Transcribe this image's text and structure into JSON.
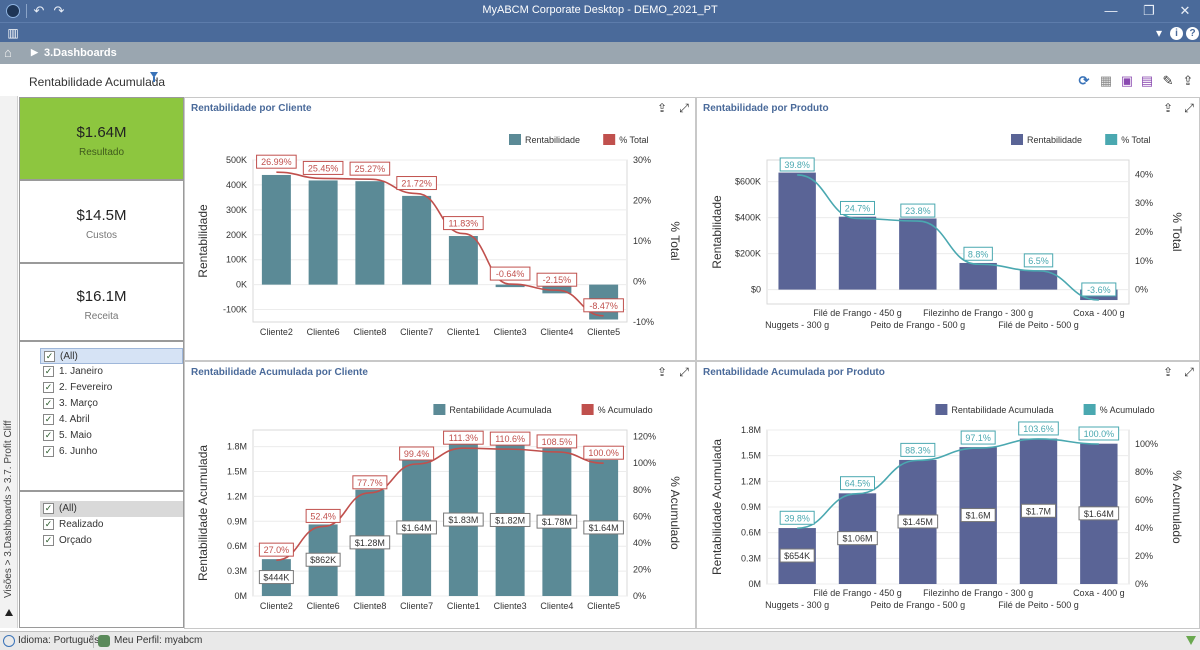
{
  "window": {
    "title": "MyABCM Corporate Desktop - DEMO_2021_PT"
  },
  "breadcrumb": {
    "label": "3.Dashboards"
  },
  "page": {
    "title": "Rentabilidade Acumulada"
  },
  "side_path": "Visões > 3.Dashboards > 3.7. Profit Cliff",
  "kpis": [
    {
      "value": "$1.64M",
      "label": "Resultado"
    },
    {
      "value": "$14.5M",
      "label": "Custos"
    },
    {
      "value": "$16.1M",
      "label": "Receita"
    }
  ],
  "months_filter": [
    "(All)",
    "1. Janeiro",
    "2. Fevereiro",
    "3. Março",
    "4. Abril",
    "5. Maio",
    "6. Junho"
  ],
  "scenario_filter": [
    "(All)",
    "Realizado",
    "Orçado"
  ],
  "status": {
    "language": "Idioma: Português",
    "profile": "Meu Perfil: myabcm"
  },
  "colors": {
    "teal_bar": "#5b8a96",
    "red_line": "#c0504d",
    "navy_bar": "#5a6496",
    "teal_line": "#4aa8b0",
    "kpi_green": "#8dc63f"
  },
  "chart_data": [
    {
      "panel_title": "Rentabilidade por Cliente",
      "type": "bar",
      "categories": [
        "Cliente2",
        "Cliente6",
        "Cliente8",
        "Cliente7",
        "Cliente1",
        "Cliente3",
        "Cliente4",
        "Cliente5"
      ],
      "series": [
        {
          "name": "Rentabilidade",
          "values": [
            440000,
            418000,
            415000,
            356000,
            195000,
            -10000,
            -35000,
            -140000
          ]
        },
        {
          "name": "% Total",
          "values": [
            26.99,
            25.45,
            25.27,
            21.72,
            11.83,
            -0.64,
            -2.15,
            -8.47
          ],
          "labels": [
            "26.99%",
            "25.45%",
            "25.27%",
            "21.72%",
            "11.83%",
            "-0.64%",
            "-2.15%",
            "-8.47%"
          ]
        }
      ],
      "ylabel": "Rentabilidade",
      "y2label": "% Total",
      "yticks": [
        "500K",
        "400K",
        "300K",
        "200K",
        "100K",
        "0K",
        "-100K"
      ],
      "y2ticks": [
        "30%",
        "20%",
        "10%",
        "0%",
        "-10%"
      ],
      "ylim": [
        -150000,
        500000
      ],
      "y2lim": [
        -10,
        30
      ],
      "legend": "top-right"
    },
    {
      "panel_title": "Rentabilidade por Produto",
      "type": "bar",
      "categories": [
        "Nuggets - 300 g",
        "Filé de Frango - 450 g",
        "Peito de Frango - 500 g",
        "Filezinho de Frango - 300 g",
        "Filé de Peito - 500 g",
        "Coxa - 400 g"
      ],
      "series": [
        {
          "name": "Rentabilidade",
          "values": [
            650000,
            405000,
            395000,
            148000,
            108000,
            -58000
          ]
        },
        {
          "name": "% Total",
          "values": [
            39.8,
            24.7,
            23.8,
            8.8,
            6.5,
            -3.6
          ],
          "labels": [
            "39.8%",
            "24.7%",
            "23.8%",
            "8.8%",
            "6.5%",
            "-3.6%"
          ]
        }
      ],
      "ylabel": "Rentabilidade",
      "y2label": "% Total",
      "yticks": [
        "$600K",
        "$400K",
        "$200K",
        "$0"
      ],
      "y2ticks": [
        "40%",
        "30%",
        "20%",
        "10%",
        "0%"
      ],
      "ylim": [
        -80000,
        720000
      ],
      "y2lim": [
        -5,
        45
      ],
      "legend": "top-right"
    },
    {
      "panel_title": "Rentabilidade Acumulada por Cliente",
      "type": "bar",
      "categories": [
        "Cliente2",
        "Cliente6",
        "Cliente8",
        "Cliente7",
        "Cliente1",
        "Cliente3",
        "Cliente4",
        "Cliente5"
      ],
      "series": [
        {
          "name": "Rentabilidade Acumulada",
          "values": [
            444000,
            862000,
            1280000,
            1640000,
            1830000,
            1820000,
            1780000,
            1640000
          ],
          "labels": [
            "$444K",
            "$862K",
            "$1.28M",
            "$1.64M",
            "$1.83M",
            "$1.82M",
            "$1.78M",
            "$1.64M"
          ]
        },
        {
          "name": "% Acumulado",
          "values": [
            27.0,
            52.4,
            77.7,
            99.4,
            111.3,
            110.6,
            108.5,
            100.0
          ],
          "labels": [
            "27.0%",
            "52.4%",
            "77.7%",
            "99.4%",
            "111.3%",
            "110.6%",
            "108.5%",
            "100.0%"
          ]
        }
      ],
      "ylabel": "Rentabilidade Acumulada",
      "y2label": "% Acumulado",
      "yticks": [
        "1.8M",
        "1.5M",
        "1.2M",
        "0.9M",
        "0.6M",
        "0.3M",
        "0M"
      ],
      "y2ticks": [
        "120%",
        "100%",
        "80%",
        "60%",
        "40%",
        "20%",
        "0%"
      ],
      "ylim": [
        0,
        2000000
      ],
      "y2lim": [
        0,
        125
      ],
      "legend": "top-right"
    },
    {
      "panel_title": "Rentabilidade Acumulada por Produto",
      "type": "bar",
      "categories": [
        "Nuggets - 300 g",
        "Filé de Frango - 450 g",
        "Peito de Frango - 500 g",
        "Filezinho de Frango - 300 g",
        "Filé de Peito - 500 g",
        "Coxa - 400 g"
      ],
      "series": [
        {
          "name": "Rentabilidade Acumulada",
          "values": [
            654000,
            1060000,
            1450000,
            1600000,
            1700000,
            1640000
          ],
          "labels": [
            "$654K",
            "$1.06M",
            "$1.45M",
            "$1.6M",
            "$1.7M",
            "$1.64M"
          ]
        },
        {
          "name": "% Acumulado",
          "values": [
            39.8,
            64.5,
            88.3,
            97.1,
            103.6,
            100.0
          ],
          "labels": [
            "39.8%",
            "64.5%",
            "88.3%",
            "97.1%",
            "103.6%",
            "100.0%"
          ]
        }
      ],
      "ylabel": "Rentabilidade Acumulada",
      "y2label": "% Acumulado",
      "yticks": [
        "1.8M",
        "1.5M",
        "1.2M",
        "0.9M",
        "0.6M",
        "0.3M",
        "0M"
      ],
      "y2ticks": [
        "100%",
        "80%",
        "60%",
        "40%",
        "20%",
        "0%"
      ],
      "ylim": [
        0,
        1800000
      ],
      "y2lim": [
        0,
        110
      ],
      "legend": "top-right"
    }
  ]
}
